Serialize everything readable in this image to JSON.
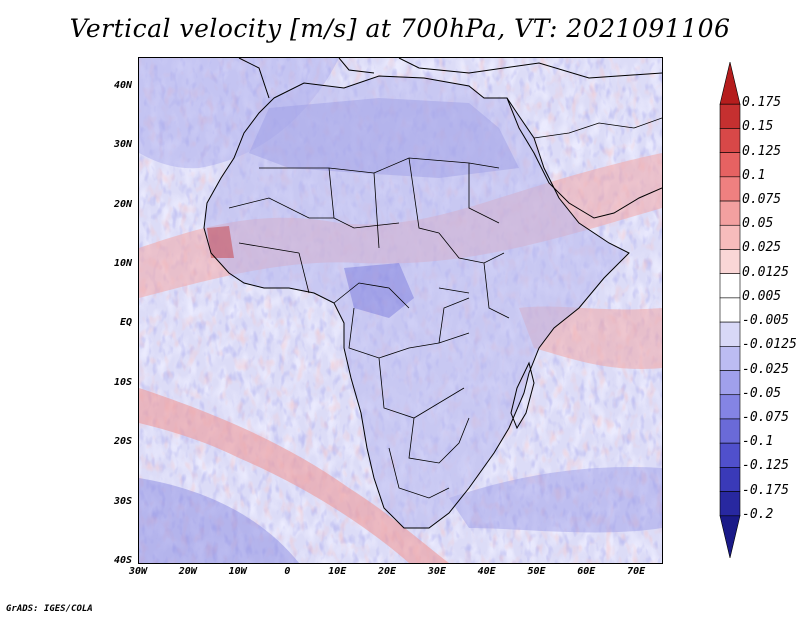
{
  "title": "Vertical velocity [m/s] at 700hPa, VT: 2021091106",
  "credit": "GrADS: IGES/COLA",
  "map": {
    "lon_range": [
      -30,
      75
    ],
    "lat_range": [
      -40,
      45
    ],
    "lat_labels": [
      "40N",
      "30N",
      "20N",
      "10N",
      "EQ",
      "10S",
      "20S",
      "30S",
      "40S"
    ],
    "lat_values": [
      40,
      30,
      20,
      10,
      0,
      -10,
      -20,
      -30,
      -40
    ],
    "lon_labels": [
      "30W",
      "20W",
      "10W",
      "0",
      "10E",
      "20E",
      "30E",
      "40E",
      "50E",
      "60E",
      "70E"
    ],
    "lon_values": [
      -30,
      -20,
      -10,
      0,
      10,
      20,
      30,
      40,
      50,
      60,
      70
    ]
  },
  "colorbar": {
    "labels": [
      "0.175",
      "0.15",
      "0.125",
      "0.1",
      "0.075",
      "0.05",
      "0.025",
      "0.0125",
      "0.005",
      "-0.005",
      "-0.0125",
      "-0.025",
      "-0.05",
      "-0.075",
      "-0.1",
      "-0.125",
      "-0.175",
      "-0.2"
    ],
    "colors": [
      "#b51d1d",
      "#c53030",
      "#d84848",
      "#e66262",
      "#ef8080",
      "#f3a0a0",
      "#f7bcbc",
      "#fad6d6",
      "#ffffff",
      "#ffffff",
      "#d8d8f7",
      "#bcbcf2",
      "#a0a0ec",
      "#8484e4",
      "#6a6ad8",
      "#5050cc",
      "#3a3ab8",
      "#2828a0",
      "#1a1a88"
    ]
  },
  "colors": {
    "red": "#e05555",
    "blue": "#6a6ad8",
    "pale_blue": "#dcdcf7",
    "coast": "#000000"
  }
}
